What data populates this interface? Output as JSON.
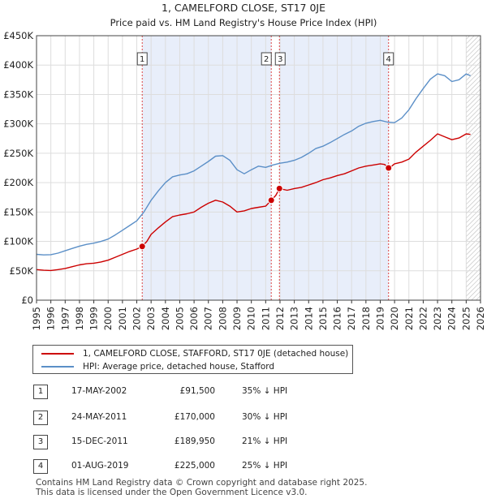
{
  "chart_data": {
    "type": "line",
    "title": "1, CAMELFORD CLOSE, ST17 0JE",
    "subtitle": "Price paid vs. HM Land Registry's House Price Index (HPI)",
    "xlim": [
      1995,
      2026
    ],
    "ylim": [
      0,
      450000
    ],
    "x_ticks": [
      "1995",
      "1996",
      "1997",
      "1998",
      "1999",
      "2000",
      "2001",
      "2002",
      "2003",
      "2004",
      "2005",
      "2006",
      "2007",
      "2008",
      "2009",
      "2010",
      "2011",
      "2012",
      "2013",
      "2014",
      "2015",
      "2016",
      "2017",
      "2018",
      "2019",
      "2020",
      "2021",
      "2022",
      "2023",
      "2024",
      "2025",
      "2026"
    ],
    "y_ticks": [
      {
        "value": 0,
        "label": "£0"
      },
      {
        "value": 50000,
        "label": "£50K"
      },
      {
        "value": 100000,
        "label": "£100K"
      },
      {
        "value": 150000,
        "label": "£150K"
      },
      {
        "value": 200000,
        "label": "£200K"
      },
      {
        "value": 250000,
        "label": "£250K"
      },
      {
        "value": 300000,
        "label": "£300K"
      },
      {
        "value": 350000,
        "label": "£350K"
      },
      {
        "value": 400000,
        "label": "£400K"
      },
      {
        "value": 450000,
        "label": "£450K"
      }
    ],
    "grid": true,
    "shaded_ranges": [
      [
        2002.38,
        2011.39
      ],
      [
        2011.96,
        2019.58
      ]
    ],
    "future_hatch_from": 2025.0,
    "series": [
      {
        "name": "1, CAMELFORD CLOSE, STAFFORD, ST17 0JE (detached house)",
        "color": "#cc0000",
        "x": [
          1995.0,
          1995.5,
          1996.0,
          1996.5,
          1997.0,
          1997.5,
          1998.0,
          1998.5,
          1999.0,
          1999.5,
          2000.0,
          2000.5,
          2001.0,
          2001.5,
          2002.0,
          2002.38,
          2002.7,
          2003.0,
          2003.5,
          2004.0,
          2004.5,
          2005.0,
          2005.5,
          2006.0,
          2006.5,
          2007.0,
          2007.5,
          2008.0,
          2008.5,
          2009.0,
          2009.5,
          2010.0,
          2010.5,
          2011.0,
          2011.39,
          2011.7,
          2011.96,
          2012.5,
          2013.0,
          2013.5,
          2014.0,
          2014.5,
          2015.0,
          2015.5,
          2016.0,
          2016.5,
          2017.0,
          2017.5,
          2018.0,
          2018.5,
          2019.0,
          2019.3,
          2019.58,
          2019.8,
          2020.0,
          2020.5,
          2021.0,
          2021.5,
          2022.0,
          2022.5,
          2023.0,
          2023.5,
          2024.0,
          2024.5,
          2025.0,
          2025.3
        ],
        "y": [
          52000,
          51000,
          50500,
          52000,
          54000,
          57000,
          60000,
          62000,
          63000,
          65000,
          68000,
          73000,
          78000,
          83000,
          87000,
          91500,
          100000,
          112000,
          123000,
          133000,
          142000,
          145000,
          147000,
          150000,
          158000,
          165000,
          170000,
          167000,
          160000,
          150000,
          152000,
          156000,
          158000,
          160000,
          170000,
          178000,
          189950,
          187000,
          190000,
          192000,
          196000,
          200000,
          205000,
          208000,
          212000,
          215000,
          220000,
          225000,
          228000,
          230000,
          232000,
          231000,
          225000,
          228000,
          232000,
          235000,
          240000,
          252000,
          262000,
          272000,
          283000,
          278000,
          273000,
          276000,
          283000,
          282000
        ]
      },
      {
        "name": "HPI: Average price, detached house, Stafford",
        "color": "#5b8fc7",
        "x": [
          1995.0,
          1995.5,
          1996.0,
          1996.5,
          1997.0,
          1997.5,
          1998.0,
          1998.5,
          1999.0,
          1999.5,
          2000.0,
          2000.5,
          2001.0,
          2001.5,
          2002.0,
          2002.5,
          2003.0,
          2003.5,
          2004.0,
          2004.5,
          2005.0,
          2005.5,
          2006.0,
          2006.5,
          2007.0,
          2007.5,
          2008.0,
          2008.5,
          2009.0,
          2009.5,
          2010.0,
          2010.5,
          2011.0,
          2011.5,
          2012.0,
          2012.5,
          2013.0,
          2013.5,
          2014.0,
          2014.5,
          2015.0,
          2015.5,
          2016.0,
          2016.5,
          2017.0,
          2017.5,
          2018.0,
          2018.5,
          2019.0,
          2019.5,
          2020.0,
          2020.5,
          2021.0,
          2021.5,
          2022.0,
          2022.5,
          2023.0,
          2023.5,
          2024.0,
          2024.5,
          2025.0,
          2025.3
        ],
        "y": [
          78000,
          77000,
          77500,
          80000,
          84000,
          88000,
          92000,
          95000,
          97000,
          100000,
          104000,
          111000,
          119000,
          127000,
          135000,
          150000,
          170000,
          186000,
          200000,
          210000,
          213000,
          215000,
          220000,
          228000,
          236000,
          245000,
          246000,
          238000,
          222000,
          215000,
          222000,
          228000,
          226000,
          230000,
          233000,
          235000,
          238000,
          243000,
          250000,
          258000,
          262000,
          268000,
          275000,
          282000,
          288000,
          296000,
          301000,
          304000,
          306000,
          303000,
          302000,
          310000,
          324000,
          343000,
          360000,
          376000,
          385000,
          382000,
          372000,
          375000,
          385000,
          382000
        ]
      }
    ],
    "markers": [
      {
        "label": "1",
        "x": 2002.38,
        "y": 91500
      },
      {
        "label": "2",
        "x": 2011.39,
        "y": 170000
      },
      {
        "label": "3",
        "x": 2011.96,
        "y": 189950
      },
      {
        "label": "4",
        "x": 2019.58,
        "y": 225000
      }
    ]
  },
  "legend": {
    "red_label": "1, CAMELFORD CLOSE, STAFFORD, ST17 0JE (detached house)",
    "blue_label": "HPI: Average price, detached house, Stafford"
  },
  "transactions": [
    {
      "num": "1",
      "date": "17-MAY-2002",
      "price": "£91,500",
      "hpi": "35% ↓ HPI"
    },
    {
      "num": "2",
      "date": "24-MAY-2011",
      "price": "£170,000",
      "hpi": "30% ↓ HPI"
    },
    {
      "num": "3",
      "date": "15-DEC-2011",
      "price": "£189,950",
      "hpi": "21% ↓ HPI"
    },
    {
      "num": "4",
      "date": "01-AUG-2019",
      "price": "£225,000",
      "hpi": "25% ↓ HPI"
    }
  ],
  "footer": {
    "line1": "Contains HM Land Registry data © Crown copyright and database right 2025.",
    "line2": "This data is licensed under the Open Government Licence v3.0."
  }
}
